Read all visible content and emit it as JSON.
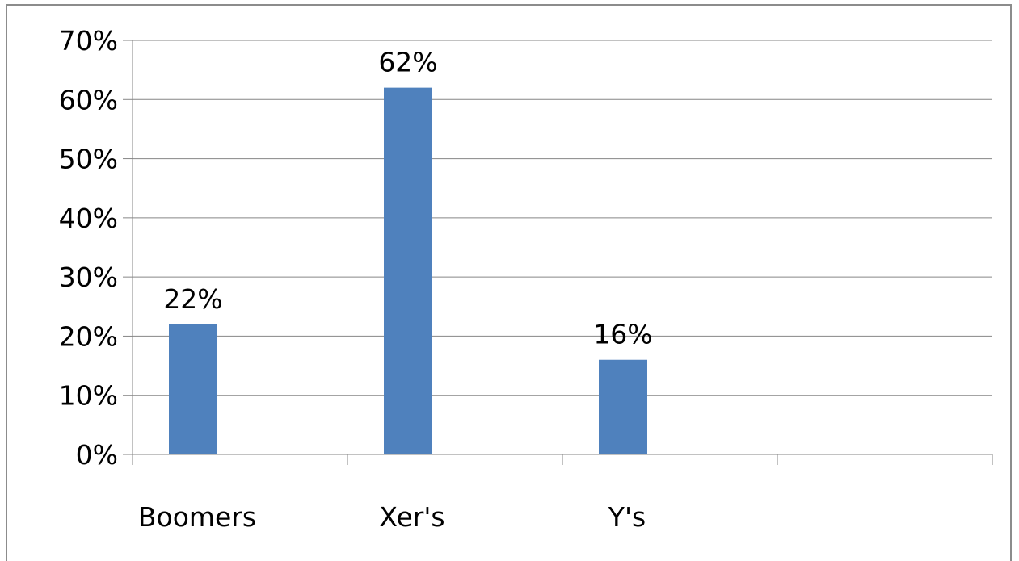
{
  "chart_data": {
    "type": "bar",
    "title": "",
    "xlabel": "",
    "ylabel": "",
    "categories": [
      "Boomers",
      "Xer's",
      "Y's",
      ""
    ],
    "values": [
      22,
      62,
      16,
      null
    ],
    "data_labels": [
      "22%",
      "62%",
      "16%",
      ""
    ],
    "ylim": [
      0,
      70
    ],
    "yticks": [
      0,
      10,
      20,
      30,
      40,
      50,
      60,
      70
    ],
    "ytick_labels": [
      "0%",
      "10%",
      "20%",
      "30%",
      "40%",
      "50%",
      "60%",
      "70%"
    ],
    "grid": true,
    "legend": "none",
    "bar_color": "#4f81bd",
    "grid_color": "#868686"
  }
}
